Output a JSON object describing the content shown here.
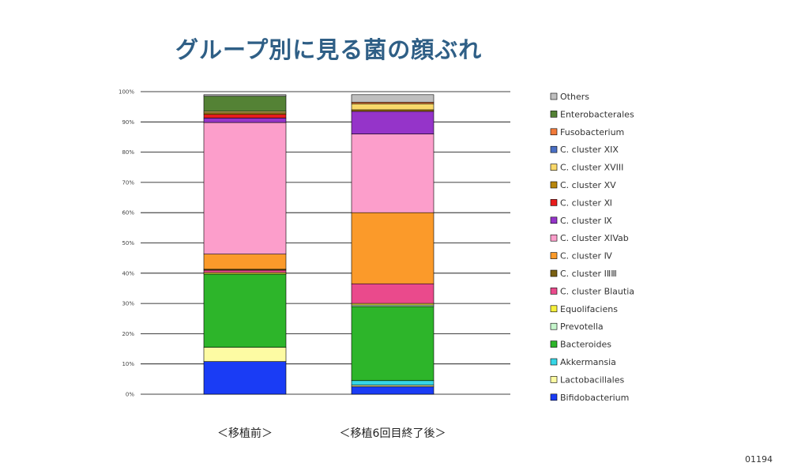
{
  "chart_data": {
    "type": "bar",
    "stacked": true,
    "title": "グループ別に見る菌の顔ぶれ",
    "categories": [
      "＜移植前＞",
      "＜移植6回目終了後＞"
    ],
    "ylim": [
      0,
      100
    ],
    "yticks": [
      "0%",
      "10%",
      "20%",
      "30%",
      "40%",
      "50%",
      "60%",
      "70%",
      "80%",
      "90%",
      "100%"
    ],
    "grid": true,
    "legend_position": "right",
    "series": [
      {
        "name": "Bifidobacterium",
        "color": "#1a3cf5",
        "values": [
          10.8,
          2.5
        ]
      },
      {
        "name": "Lactobacillales",
        "color": "#fdfba3",
        "values": [
          4.7,
          0.5
        ]
      },
      {
        "name": "Akkermansia",
        "color": "#36d6e6",
        "values": [
          0.0,
          1.5
        ]
      },
      {
        "name": "Bacteroides",
        "color": "#2db52a",
        "values": [
          24.2,
          24.5
        ]
      },
      {
        "name": "Prevotella",
        "color": "#c6f5cc",
        "values": [
          0.0,
          0.5
        ]
      },
      {
        "name": "Equolifaciens",
        "color": "#f6f03c",
        "values": [
          0.5,
          0.5
        ]
      },
      {
        "name": "C. cluster Blautia",
        "color": "#ea4a8c",
        "values": [
          0.8,
          6.5
        ]
      },
      {
        "name": "C. cluster ⅠⅡⅢ",
        "color": "#7a6012",
        "values": [
          0.3,
          0.0
        ]
      },
      {
        "name": "C. cluster Ⅳ",
        "color": "#fb9a2a",
        "values": [
          5.0,
          23.5
        ]
      },
      {
        "name": "C. cluster XIVab",
        "color": "#fc9ecb",
        "values": [
          43.5,
          26.0
        ]
      },
      {
        "name": "C. cluster Ⅸ",
        "color": "#9534c9",
        "values": [
          1.5,
          7.5
        ]
      },
      {
        "name": "C. cluster Ⅺ",
        "color": "#e81c1c",
        "values": [
          1.2,
          0.0
        ]
      },
      {
        "name": "C. cluster XV",
        "color": "#b8860b",
        "values": [
          0.5,
          0.5
        ]
      },
      {
        "name": "C. cluster XVIII",
        "color": "#f9d86a",
        "values": [
          0.5,
          2.0
        ]
      },
      {
        "name": "C. cluster XIX",
        "color": "#4a6fc4",
        "values": [
          0.0,
          0.0
        ]
      },
      {
        "name": "Fusobacterium",
        "color": "#f27a3a",
        "values": [
          0.0,
          0.5
        ]
      },
      {
        "name": "Enterobacterales",
        "color": "#548235",
        "values": [
          5.0,
          0.0
        ]
      },
      {
        "name": "Others",
        "color": "#bfbfbf",
        "values": [
          0.5,
          2.5
        ]
      }
    ]
  },
  "page_number": "01194"
}
